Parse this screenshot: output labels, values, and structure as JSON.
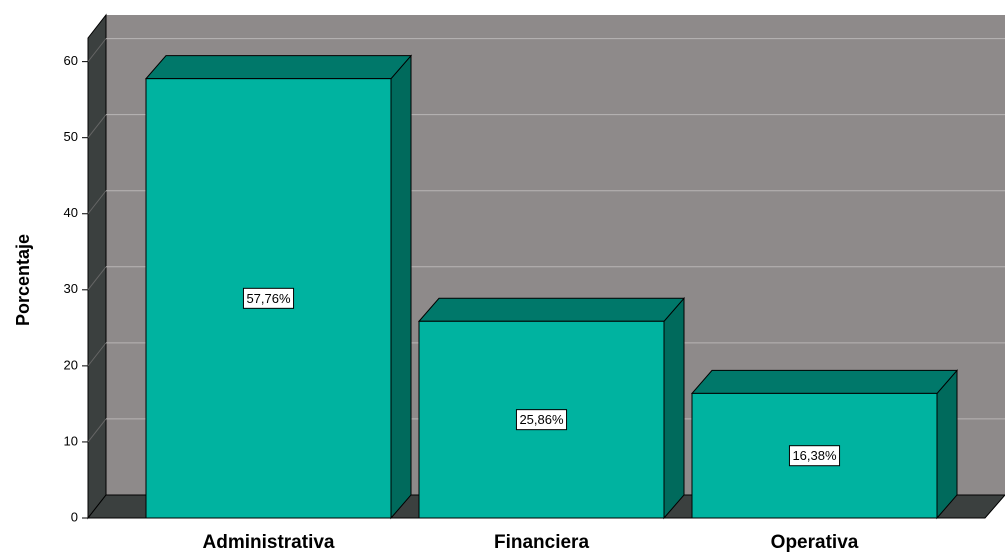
{
  "chart_data": {
    "type": "bar3d",
    "y_label": "Porcentaje",
    "categories": [
      "Administrativa",
      "Financiera",
      "Operativa"
    ],
    "values": [
      57.76,
      25.86,
      16.38
    ],
    "value_labels": [
      "57,76%",
      "25,86%",
      "16,38%"
    ],
    "color": "#00b3a0",
    "ylim": [
      0,
      63.5
    ],
    "yticks": [
      0,
      10,
      20,
      30,
      40,
      50,
      60
    ],
    "grid": true
  }
}
